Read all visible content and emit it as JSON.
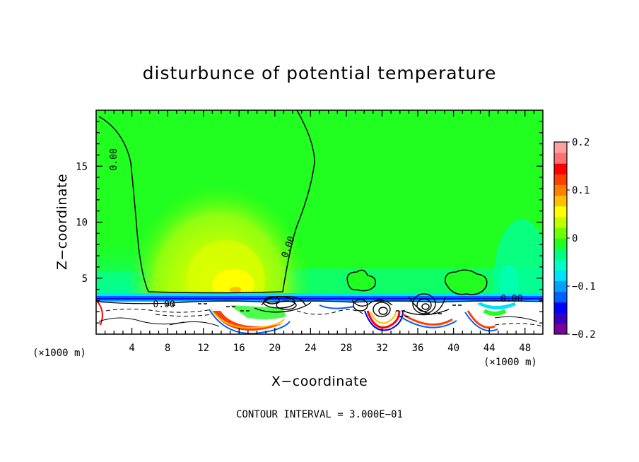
{
  "chart_data": {
    "type": "heatmap",
    "title": "disturbunce of potential temperature",
    "xlabel": "X−coordinate",
    "ylabel": "Z−coordinate",
    "x_unit_left": "(×1000 m)",
    "x_unit_right": "(×1000 m)",
    "xlim": [
      0,
      50
    ],
    "ylim": [
      0,
      20
    ],
    "x_ticks": [
      4,
      8,
      12,
      16,
      20,
      24,
      28,
      32,
      36,
      40,
      44,
      48
    ],
    "y_ticks": [
      5,
      10,
      15
    ],
    "colorbar": {
      "range": [
        -0.2,
        0.2
      ],
      "tick_values": [
        0.2,
        0.1,
        0,
        -0.1,
        -0.2
      ],
      "tick_labels": [
        "0.2",
        "0.1",
        "0",
        "−0.1",
        "−0.2"
      ],
      "colors": [
        "#7a009a",
        "#3a00c0",
        "#0000ff",
        "#0060ff",
        "#00a0ff",
        "#00e0ff",
        "#00ffc0",
        "#00ff80",
        "#20ff20",
        "#70ff00",
        "#c0ff00",
        "#ffff00",
        "#ffc000",
        "#ff8000",
        "#ff4000",
        "#ff0000",
        "#ff7070",
        "#ffa0a0"
      ]
    },
    "contour_labels": [
      {
        "x": 2.3,
        "z": 15.6,
        "text": "0.00",
        "rotate": -90
      },
      {
        "x": 21.8,
        "z": 7.7,
        "text": "0.00",
        "rotate": -70
      },
      {
        "x": 7.6,
        "z": 2.4,
        "text": "0.00",
        "rotate": 0
      },
      {
        "x": 46.5,
        "z": 2.9,
        "text": "0.00",
        "rotate": 0
      }
    ],
    "contour_interval_text": "CONTOUR INTERVAL = 3.000E−01"
  }
}
